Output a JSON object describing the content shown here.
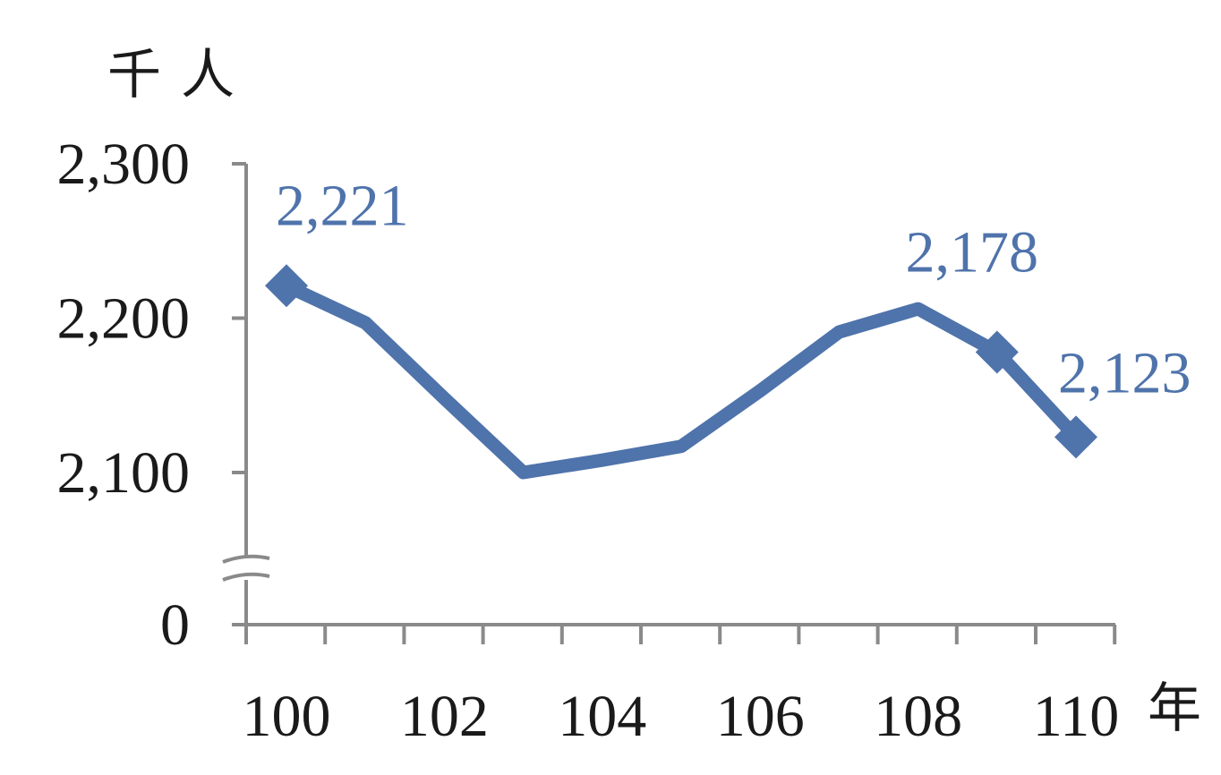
{
  "chart_data": {
    "type": "line",
    "ylabel": "千人",
    "xlabel": "年",
    "x": [
      100,
      101,
      102,
      103,
      104,
      105,
      106,
      107,
      108,
      109,
      110
    ],
    "series": [
      {
        "values": [
          2221,
          2197,
          2148,
          2100,
          2108,
          2117,
          2153,
          2191,
          2206,
          2178,
          2123
        ],
        "color": "#4f73ab"
      }
    ],
    "x_tick_labels": [
      "100",
      "102",
      "104",
      "106",
      "108",
      "110"
    ],
    "y_tick_labels": [
      "0",
      "2,100",
      "2,200",
      "2,300"
    ],
    "y_ticks": [
      0,
      2100,
      2200,
      2300
    ],
    "ylim": [
      2050,
      2300
    ],
    "y_axis_break": true,
    "markers_at": [
      100,
      109,
      110
    ],
    "data_labels": [
      {
        "x": 100,
        "text": "2,221"
      },
      {
        "x": 109,
        "text": "2,178"
      },
      {
        "x": 110,
        "text": "2,123"
      }
    ],
    "grid": false,
    "legend": "none"
  }
}
